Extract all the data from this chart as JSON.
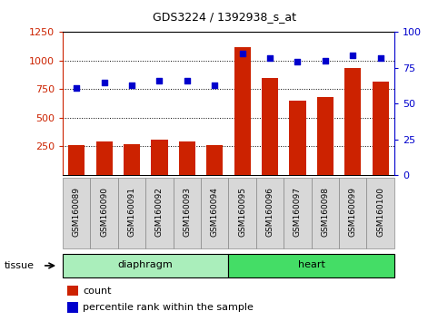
{
  "title": "GDS3224 / 1392938_s_at",
  "samples": [
    "GSM160089",
    "GSM160090",
    "GSM160091",
    "GSM160092",
    "GSM160093",
    "GSM160094",
    "GSM160095",
    "GSM160096",
    "GSM160097",
    "GSM160098",
    "GSM160099",
    "GSM160100"
  ],
  "count_values": [
    258,
    295,
    272,
    308,
    295,
    258,
    1120,
    845,
    650,
    680,
    935,
    815
  ],
  "percentile_values": [
    61,
    65,
    63,
    66,
    66,
    63,
    85,
    82,
    79,
    80,
    84,
    82
  ],
  "tissue_groups": [
    {
      "label": "diaphragm",
      "start": 0,
      "end": 6,
      "color": "#AAEEBB"
    },
    {
      "label": "heart",
      "start": 6,
      "end": 12,
      "color": "#44DD66"
    }
  ],
  "bar_color": "#CC2200",
  "dot_color": "#0000CC",
  "left_axis_color": "#CC2200",
  "right_axis_color": "#0000CC",
  "ylim_left": [
    0,
    1250
  ],
  "ylim_right": [
    0,
    100
  ],
  "yticks_left": [
    250,
    500,
    750,
    1000,
    1250
  ],
  "yticks_right": [
    0,
    25,
    50,
    75,
    100
  ],
  "grid_lines": [
    250,
    500,
    750,
    1000
  ],
  "legend_count_label": "count",
  "legend_percentile_label": "percentile rank within the sample",
  "tissue_label": "tissue",
  "figsize": [
    4.93,
    3.54
  ],
  "dpi": 100
}
